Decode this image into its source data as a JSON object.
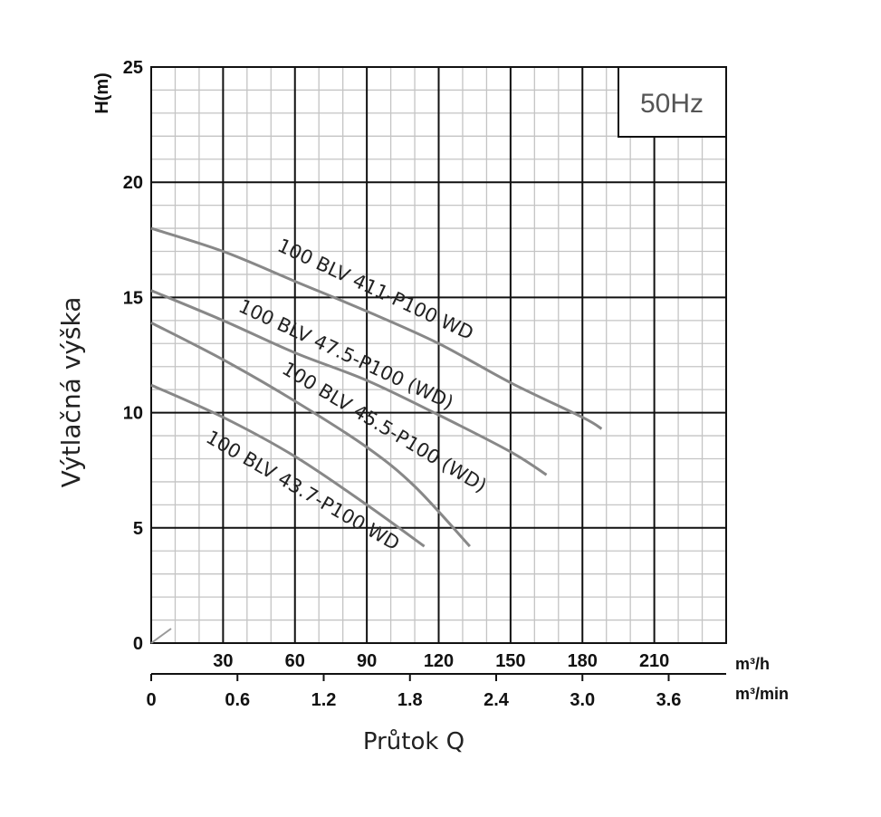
{
  "chart_data": {
    "type": "line",
    "title": "",
    "badge": "50Hz",
    "ylabel": "Výtlačná výška",
    "y_unit_label": "H(m)",
    "xlabel": "Průtok Q",
    "x_unit_label": "m³/h",
    "x2_unit_label": "m³/min",
    "xlim": [
      0,
      240
    ],
    "ylim": [
      0,
      25
    ],
    "x_ticks": [
      30,
      60,
      90,
      120,
      150,
      180,
      210
    ],
    "x_tick_labels": [
      "30",
      "60",
      "90",
      "120",
      "150",
      "180",
      "210"
    ],
    "x2_ticks": [
      0,
      36,
      72,
      108,
      144,
      180,
      216
    ],
    "x2_tick_labels": [
      "0",
      "0.6",
      "1.2",
      "1.8",
      "2.4",
      "3.0",
      "3.6"
    ],
    "y_ticks": [
      0,
      5,
      10,
      15,
      20,
      25
    ],
    "y_tick_labels": [
      "0",
      "5",
      "10",
      "15",
      "20",
      "25"
    ],
    "grid": true,
    "series": [
      {
        "name": "100 BLV 411-P100 WD",
        "color": "#888888",
        "x": [
          0,
          30,
          60,
          90,
          120,
          150,
          180,
          188
        ],
        "y": [
          18.0,
          17.0,
          15.7,
          14.4,
          13.0,
          11.3,
          9.8,
          9.3
        ]
      },
      {
        "name": "100 BLV 47.5-P100 (WD)",
        "color": "#888888",
        "x": [
          0,
          30,
          60,
          90,
          120,
          150,
          165
        ],
        "y": [
          15.3,
          14.0,
          12.6,
          11.4,
          9.9,
          8.3,
          7.3
        ]
      },
      {
        "name": "100 BLV 45.5-P100 (WD)",
        "color": "#888888",
        "x": [
          0,
          30,
          60,
          90,
          110,
          133
        ],
        "y": [
          13.9,
          12.3,
          10.5,
          8.5,
          6.8,
          4.2
        ]
      },
      {
        "name": "100 BLV 43.7-P100 WD",
        "color": "#888888",
        "x": [
          0,
          30,
          60,
          90,
          114
        ],
        "y": [
          11.2,
          9.8,
          8.1,
          6.0,
          4.2
        ]
      }
    ]
  }
}
